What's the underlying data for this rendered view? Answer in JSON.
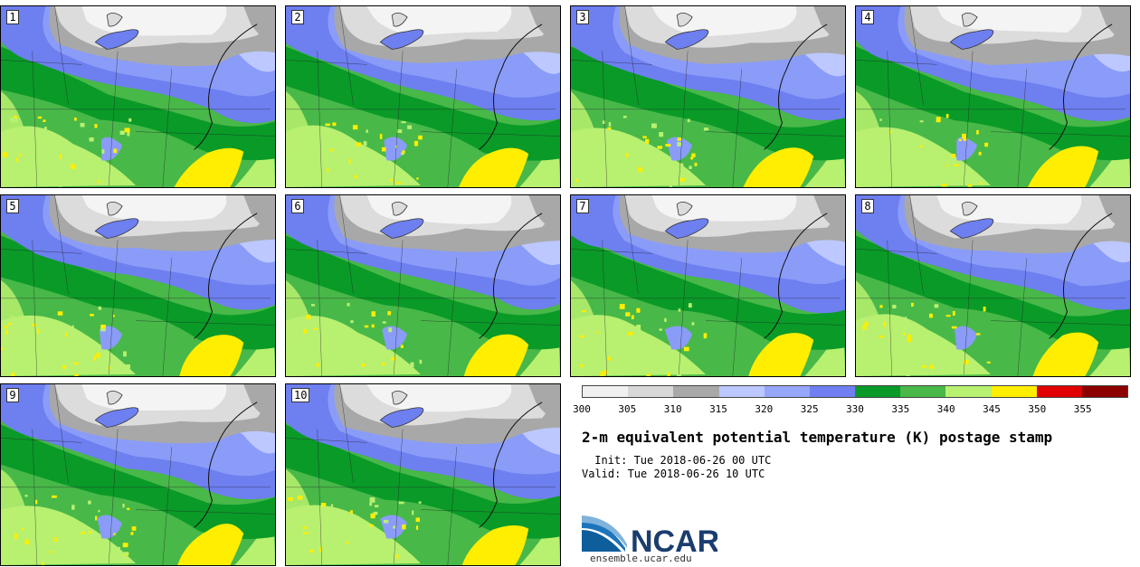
{
  "panels": [
    {
      "label": "1"
    },
    {
      "label": "2"
    },
    {
      "label": "3"
    },
    {
      "label": "4"
    },
    {
      "label": "5"
    },
    {
      "label": "6"
    },
    {
      "label": "7"
    },
    {
      "label": "8"
    },
    {
      "label": "9"
    },
    {
      "label": "10"
    }
  ],
  "colorbar": {
    "colors": [
      "#f0f0f0",
      "#d8d8d8",
      "#a8a8a8",
      "#bcc8ff",
      "#96a6fa",
      "#7080f2",
      "#0a9a28",
      "#48b848",
      "#b8f070",
      "#ffee00",
      "#e00000",
      "#8c0000"
    ],
    "ticks": [
      "300",
      "305",
      "310",
      "315",
      "320",
      "325",
      "330",
      "335",
      "340",
      "345",
      "350",
      "355"
    ]
  },
  "map_colors": {
    "white": "#f4f4f4",
    "light_gray": "#dcdcdc",
    "gray": "#a8a8a8",
    "light_blue": "#bcc8ff",
    "blue": "#8a9cf8",
    "dark_blue": "#6e7ff0",
    "dark_green": "#0a9a28",
    "green": "#48b848",
    "light_green": "#b8f070",
    "yellow": "#ffee00"
  },
  "title": "2-m equivalent potential temperature (K) postage stamp",
  "init_line": " Init: Tue 2018-06-26 00 UTC",
  "valid_line": "Valid: Tue 2018-06-26 10 UTC",
  "logo": {
    "text": "NCAR",
    "url": "ensemble.ucar.edu"
  }
}
